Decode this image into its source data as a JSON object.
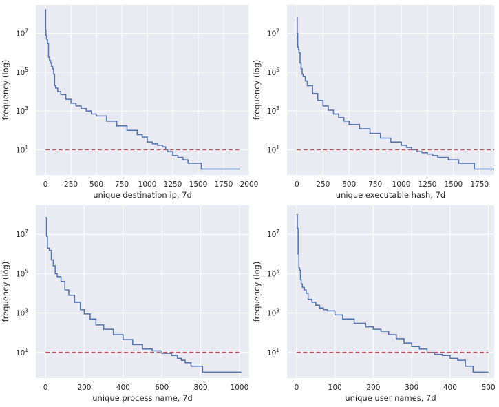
{
  "figure": {
    "background": "#ffffff",
    "axes_background": "#eaeaf2",
    "grid_color": "#ffffff",
    "line_color": "#4c72b0",
    "threshold_color": "#c44e52"
  },
  "chart_data": [
    {
      "type": "line",
      "xlabel": "unique destination ip, 7d",
      "ylabel": "frequency (log)",
      "xscale": "linear",
      "yscale": "log",
      "xlim": [
        -95,
        2000
      ],
      "ylim": [
        0.5,
        300000000
      ],
      "xticks": [
        0,
        250,
        500,
        750,
        1000,
        1250,
        1500,
        1750,
        2000
      ],
      "yticks": [
        {
          "value": 10,
          "base": "10",
          "exp": "1"
        },
        {
          "value": 1000,
          "base": "10",
          "exp": "3"
        },
        {
          "value": 100000,
          "base": "10",
          "exp": "5"
        },
        {
          "value": 10000000,
          "base": "10",
          "exp": "7"
        }
      ],
      "grid": true,
      "series": [
        {
          "style": "solid",
          "color": "#4c72b0",
          "x": [
            0,
            2,
            5,
            10,
            20,
            30,
            40,
            50,
            60,
            70,
            80,
            90,
            100,
            120,
            150,
            200,
            250,
            300,
            350,
            400,
            450,
            500,
            600,
            700,
            800,
            900,
            950,
            1000,
            1050,
            1100,
            1150,
            1180,
            1200,
            1250,
            1300,
            1350,
            1400,
            1450,
            1520,
            1530,
            1600,
            1700,
            1800,
            1910
          ],
          "y": [
            170000000,
            15000000,
            8000000,
            5000000,
            3000000,
            600000,
            400000,
            300000,
            200000,
            150000,
            80000,
            20000,
            15000,
            10000,
            7000,
            4000,
            2500,
            1800,
            1300,
            1000,
            700,
            550,
            300,
            170,
            100,
            60,
            45,
            25,
            20,
            17,
            14,
            10,
            8,
            5,
            4,
            3,
            2,
            2,
            2,
            1,
            1,
            1,
            1,
            1
          ]
        },
        {
          "style": "dashed",
          "color": "#c44e52",
          "x": [
            0,
            1910
          ],
          "y": [
            10,
            10
          ]
        }
      ]
    },
    {
      "type": "line",
      "xlabel": "unique executable hash, 7d",
      "ylabel": "frequency (log)",
      "xscale": "linear",
      "yscale": "log",
      "xlim": [
        -95,
        1890
      ],
      "ylim": [
        0.5,
        300000000
      ],
      "xticks": [
        0,
        250,
        500,
        750,
        1000,
        1250,
        1500,
        1750
      ],
      "yticks": [
        {
          "value": 10,
          "base": "10",
          "exp": "1"
        },
        {
          "value": 1000,
          "base": "10",
          "exp": "3"
        },
        {
          "value": 100000,
          "base": "10",
          "exp": "5"
        },
        {
          "value": 10000000,
          "base": "10",
          "exp": "7"
        }
      ],
      "grid": true,
      "series": [
        {
          "style": "solid",
          "color": "#4c72b0",
          "x": [
            0,
            3,
            8,
            15,
            20,
            30,
            40,
            50,
            60,
            80,
            100,
            150,
            200,
            250,
            300,
            350,
            400,
            450,
            500,
            600,
            700,
            800,
            900,
            1000,
            1050,
            1100,
            1150,
            1200,
            1250,
            1300,
            1350,
            1400,
            1450,
            1500,
            1550,
            1650,
            1700,
            1800,
            1890
          ],
          "y": [
            70000000,
            10000000,
            2000000,
            1500000,
            1000000,
            300000,
            150000,
            80000,
            60000,
            35000,
            20000,
            8000,
            3500,
            1800,
            1100,
            700,
            450,
            300,
            200,
            120,
            70,
            40,
            25,
            17,
            13,
            10,
            8,
            7,
            6,
            5,
            4,
            4,
            3,
            3,
            2,
            2,
            1,
            1,
            1
          ]
        },
        {
          "style": "dashed",
          "color": "#c44e52",
          "x": [
            0,
            1890
          ],
          "y": [
            10,
            10
          ]
        }
      ]
    },
    {
      "type": "line",
      "xlabel": "unique process name, 7d",
      "ylabel": "frequency (log)",
      "xscale": "linear",
      "yscale": "log",
      "xlim": [
        -50,
        1050
      ],
      "ylim": [
        0.5,
        300000000
      ],
      "xticks": [
        0,
        200,
        400,
        600,
        800,
        1000
      ],
      "yticks": [
        {
          "value": 10,
          "base": "10",
          "exp": "1"
        },
        {
          "value": 1000,
          "base": "10",
          "exp": "3"
        },
        {
          "value": 100000,
          "base": "10",
          "exp": "5"
        },
        {
          "value": 10000000,
          "base": "10",
          "exp": "7"
        }
      ],
      "grid": true,
      "series": [
        {
          "style": "solid",
          "color": "#4c72b0",
          "x": [
            0,
            5,
            10,
            20,
            30,
            40,
            50,
            60,
            80,
            100,
            120,
            150,
            180,
            200,
            230,
            260,
            300,
            350,
            400,
            450,
            500,
            550,
            600,
            650,
            680,
            700,
            720,
            750,
            800,
            810,
            1010
          ],
          "y": [
            70000000,
            8000000,
            2000000,
            1500000,
            500000,
            250000,
            100000,
            70000,
            40000,
            15000,
            8000,
            3500,
            1500,
            900,
            500,
            250,
            150,
            80,
            45,
            25,
            15,
            12,
            9,
            7,
            5,
            4,
            3,
            2,
            2,
            1,
            1
          ]
        },
        {
          "style": "dashed",
          "color": "#c44e52",
          "x": [
            0,
            1010
          ],
          "y": [
            10,
            10
          ]
        }
      ]
    },
    {
      "type": "line",
      "xlabel": "unique user names, 7d",
      "ylabel": "frequency (log)",
      "xscale": "linear",
      "yscale": "log",
      "xlim": [
        -25,
        515
      ],
      "ylim": [
        0.5,
        300000000
      ],
      "xticks": [
        0,
        100,
        200,
        300,
        400,
        500
      ],
      "yticks": [
        {
          "value": 10,
          "base": "10",
          "exp": "1"
        },
        {
          "value": 1000,
          "base": "10",
          "exp": "3"
        },
        {
          "value": 100000,
          "base": "10",
          "exp": "5"
        },
        {
          "value": 10000000,
          "base": "10",
          "exp": "7"
        }
      ],
      "grid": true,
      "series": [
        {
          "style": "solid",
          "color": "#4c72b0",
          "x": [
            0,
            2,
            4,
            6,
            8,
            10,
            12,
            15,
            20,
            25,
            30,
            40,
            50,
            60,
            70,
            80,
            100,
            120,
            150,
            180,
            200,
            220,
            240,
            260,
            280,
            300,
            320,
            340,
            360,
            380,
            400,
            420,
            440,
            460,
            480,
            500
          ],
          "y": [
            100000000,
            20000000,
            1000000,
            200000,
            150000,
            50000,
            30000,
            20000,
            15000,
            10000,
            5000,
            3500,
            2500,
            1800,
            1500,
            1300,
            800,
            500,
            300,
            200,
            150,
            120,
            80,
            50,
            30,
            20,
            15,
            10,
            8,
            7,
            5,
            4,
            2,
            1,
            1,
            1
          ]
        },
        {
          "style": "dashed",
          "color": "#c44e52",
          "x": [
            0,
            500
          ],
          "y": [
            10,
            10
          ]
        }
      ]
    }
  ]
}
